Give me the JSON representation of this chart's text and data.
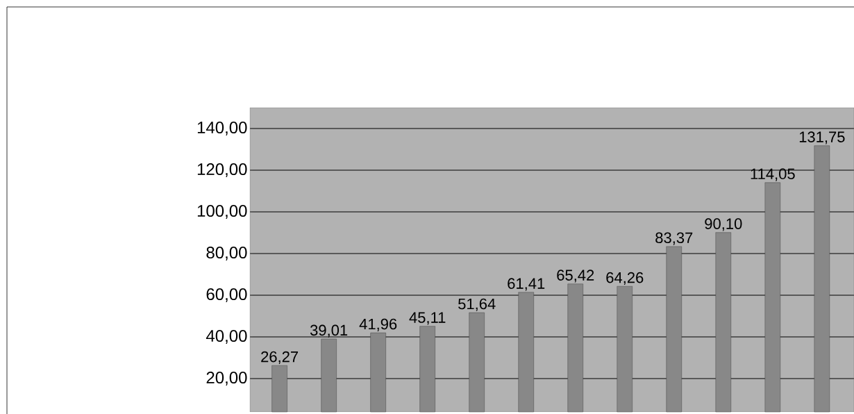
{
  "chart_data": {
    "type": "bar",
    "categories": [
      null,
      null,
      null,
      null,
      null,
      null,
      null,
      null,
      null,
      null,
      null,
      null
    ],
    "values": [
      26.27,
      39.01,
      41.96,
      45.11,
      51.64,
      61.41,
      65.42,
      64.26,
      83.37,
      90.1,
      114.05,
      131.75
    ],
    "value_labels": [
      "26,27",
      "39,01",
      "41,96",
      "45,11",
      "51,64",
      "61,41",
      "65,42",
      "64,26",
      "83,37",
      "90,10",
      "114,05",
      "131,75"
    ],
    "color": "#888888",
    "ylim": [
      4,
      150
    ],
    "yticks": [
      {
        "value": 20,
        "label": "20,00"
      },
      {
        "value": 40,
        "label": "40,00"
      },
      {
        "value": 60,
        "label": "60,00"
      },
      {
        "value": 80,
        "label": "80,00"
      },
      {
        "value": 100,
        "label": "100,00"
      },
      {
        "value": 120,
        "label": "120,00"
      },
      {
        "value": 140,
        "label": "140,00"
      }
    ],
    "grid": "y"
  }
}
